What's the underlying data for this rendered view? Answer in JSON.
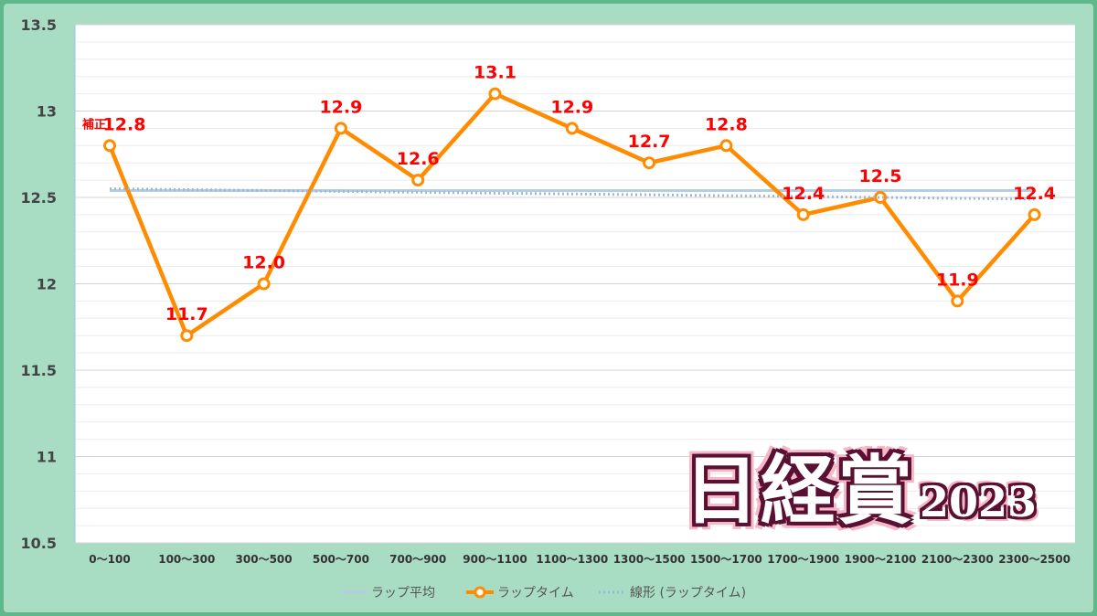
{
  "chart_data": {
    "type": "line",
    "categories": [
      "0～100",
      "100～300",
      "300～500",
      "500～700",
      "700～900",
      "900～1100",
      "1100～1300",
      "1300～1500",
      "1500～1700",
      "1700～1900",
      "1900～2100",
      "2100～2300",
      "2300～2500"
    ],
    "series": [
      {
        "name": "ラップ平均",
        "values": [
          12.54,
          12.54,
          12.54,
          12.54,
          12.54,
          12.54,
          12.54,
          12.54,
          12.54,
          12.54,
          12.54,
          12.54,
          12.54
        ],
        "color": "#b4cde4",
        "style": "solid"
      },
      {
        "name": "ラップタイム",
        "values": [
          12.8,
          11.7,
          12.0,
          12.9,
          12.6,
          13.1,
          12.9,
          12.7,
          12.8,
          12.4,
          12.5,
          11.9,
          12.4
        ],
        "color": "#ff8c00",
        "style": "solid-marker"
      },
      {
        "name": "線形 (ラップタイム)",
        "values": [
          12.55,
          12.545,
          12.54,
          12.535,
          12.53,
          12.525,
          12.52,
          12.515,
          12.51,
          12.505,
          12.5,
          12.495,
          12.49
        ],
        "color": "#9bbad8",
        "style": "dotted"
      }
    ],
    "data_labels": [
      "12.8",
      "11.7",
      "12.0",
      "12.9",
      "12.6",
      "13.1",
      "12.9",
      "12.7",
      "12.8",
      "12.4",
      "12.5",
      "11.9",
      "12.4"
    ],
    "yticks": [
      "10.5",
      "11",
      "11.5",
      "12",
      "12.5",
      "13",
      "13.5"
    ],
    "ylim": [
      10.5,
      13.5
    ],
    "annotation": "補正",
    "grid": true,
    "legend": "bottom"
  },
  "logo": {
    "main": "日経賞",
    "year": "2023"
  }
}
